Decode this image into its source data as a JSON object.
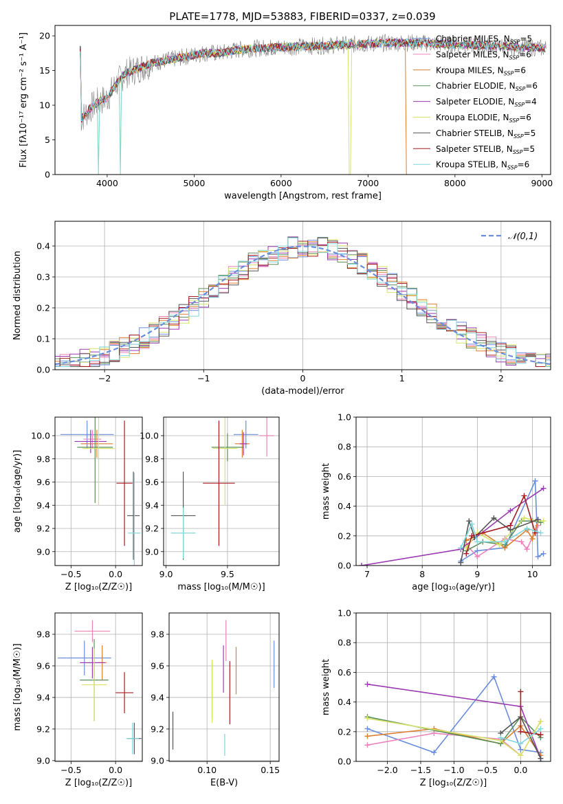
{
  "title": "PLATE=1778, MJD=53883, FIBERID=0337, z=0.039",
  "colors": [
    "#6a8ddb",
    "#ec82bb",
    "#dd7f2c",
    "#5a8f5a",
    "#9a3ab0",
    "#d7e36a",
    "#555555",
    "#a61c22",
    "#82d6dc"
  ],
  "legend_entries": [
    {
      "model": "Chabrier MILES",
      "nssp": "5"
    },
    {
      "model": "Salpeter MILES",
      "nssp": "6"
    },
    {
      "model": "Kroupa MILES",
      "nssp": "6"
    },
    {
      "model": "Chabrier ELODIE",
      "nssp": "6"
    },
    {
      "model": "Salpeter ELODIE",
      "nssp": "4"
    },
    {
      "model": "Kroupa ELODIE",
      "nssp": "6"
    },
    {
      "model": "Chabrier STELIB",
      "nssp": "5"
    },
    {
      "model": "Salpeter STELIB",
      "nssp": "5"
    },
    {
      "model": "Kroupa STELIB",
      "nssp": "6"
    }
  ],
  "chart_data": [
    {
      "id": "spectrum",
      "type": "line",
      "xlabel": "wavelength [Angstrom, rest frame]",
      "ylabel": "Flux [fλ10⁻¹⁷ erg cm⁻² s⁻¹ A⁻¹]",
      "xlim": [
        3400,
        9100
      ],
      "ylim": [
        0,
        21.5
      ],
      "xticks": [
        4000,
        5000,
        6000,
        7000,
        8000,
        9000
      ],
      "yticks": [
        0,
        5,
        10,
        15,
        20
      ],
      "grid": false,
      "legend": "upper right",
      "x": [
        3700,
        3800,
        3900,
        4000,
        4100,
        4200,
        4300,
        4400,
        4500,
        4700,
        4900,
        5100,
        5300,
        5500,
        5700,
        5900,
        6100,
        6300,
        6500,
        6700,
        6900,
        7100,
        7300,
        7500,
        7700,
        7900,
        8100,
        8300,
        8500,
        8700,
        8900,
        9050
      ],
      "model_flux": [
        8.0,
        9.5,
        10.5,
        11.0,
        13.0,
        14.5,
        15.0,
        15.5,
        16.0,
        16.5,
        17.0,
        17.5,
        17.5,
        18.0,
        18.2,
        18.3,
        18.4,
        18.5,
        18.6,
        18.7,
        18.8,
        18.9,
        19.0,
        19.0,
        18.9,
        18.8,
        18.7,
        18.6,
        18.5,
        18.4,
        18.3,
        18.2
      ],
      "notes": [
        "data spectrum shown in gray with noise",
        "Kroupa MILES spectrum drops to 0 near 7430 Å",
        "absorption dips to 0 near 3900, 4150 and 6790 Å"
      ]
    },
    {
      "id": "residuals",
      "type": "bar",
      "xlabel": "(data-model)/error",
      "ylabel": "Normed distribution",
      "xlim": [
        -2.5,
        2.5
      ],
      "ylim": [
        0,
        0.48
      ],
      "xticks": [
        -2,
        -1,
        0,
        1,
        2
      ],
      "yticks": [
        0.0,
        0.1,
        0.2,
        0.3,
        0.4
      ],
      "grid": true,
      "legend": "upper right",
      "reference": {
        "name": "𝒩(0,1)",
        "color": "#6a8ddb"
      }
    },
    {
      "id": "age-vs-Z",
      "type": "scatter",
      "xlabel": "Z [log₁₀(Z/Z☉)]",
      "ylabel": "age  [log₁₀(age/yr)]",
      "xlim": [
        -0.68,
        0.3
      ],
      "ylim": [
        8.88,
        10.16
      ],
      "xticks": [
        -0.5,
        0.0
      ],
      "yticks": [
        9.0,
        9.2,
        9.4,
        9.6,
        9.8,
        10.0
      ],
      "grid": true,
      "points": [
        {
          "x": -0.32,
          "y": 10.01,
          "xerr": 0.3,
          "yerr": 0.12,
          "color": 0
        },
        {
          "x": -0.26,
          "y": 9.97,
          "xerr": 0.1,
          "yerr": 0.08,
          "color": 1
        },
        {
          "x": -0.21,
          "y": 9.93,
          "xerr": 0.18,
          "yerr": 0.12,
          "color": 2
        },
        {
          "x": -0.23,
          "y": 9.9,
          "xerr": 0.2,
          "yerr": 0.48,
          "color": 3
        },
        {
          "x": -0.28,
          "y": 9.95,
          "xerr": 0.18,
          "yerr": 0.1,
          "color": 4
        },
        {
          "x": -0.19,
          "y": 9.89,
          "xerr": 0.18,
          "yerr": 0.49,
          "color": 5
        },
        {
          "x": 0.2,
          "y": 9.31,
          "xerr": 0.07,
          "yerr": 0.38,
          "color": 6
        },
        {
          "x": 0.1,
          "y": 9.59,
          "xerr": 0.09,
          "yerr": 0.54,
          "color": 7
        },
        {
          "x": 0.21,
          "y": 9.16,
          "xerr": 0.07,
          "yerr": 0.52,
          "color": 8
        }
      ]
    },
    {
      "id": "age-vs-mass",
      "type": "scatter",
      "xlabel": "mass [log₁₀(M/M☉)]",
      "ylabel": "",
      "xlim": [
        8.98,
        9.92
      ],
      "ylim": [
        8.88,
        10.16
      ],
      "xticks": [
        9.0,
        9.5
      ],
      "yticks": [
        9.0,
        9.2,
        9.4,
        9.6,
        9.8,
        10.0
      ],
      "grid": true,
      "points": [
        {
          "x": 9.65,
          "y": 10.01,
          "xerr": 0.1,
          "yerr": 0.12,
          "color": 0
        },
        {
          "x": 9.82,
          "y": 10.0,
          "xerr": 0.06,
          "yerr": 0.18,
          "color": 1
        },
        {
          "x": 9.62,
          "y": 9.93,
          "xerr": 0.06,
          "yerr": 0.12,
          "color": 2
        },
        {
          "x": 9.5,
          "y": 9.9,
          "xerr": 0.13,
          "yerr": 0.12,
          "color": 3
        },
        {
          "x": 9.63,
          "y": 9.93,
          "xerr": 0.03,
          "yerr": 0.1,
          "color": 4
        },
        {
          "x": 9.48,
          "y": 9.89,
          "xerr": 0.1,
          "yerr": 0.49,
          "color": 5
        },
        {
          "x": 9.14,
          "y": 9.31,
          "xerr": 0.1,
          "yerr": 0.38,
          "color": 6
        },
        {
          "x": 9.43,
          "y": 9.59,
          "xerr": 0.13,
          "yerr": 0.54,
          "color": 7
        },
        {
          "x": 9.14,
          "y": 9.16,
          "xerr": 0.1,
          "yerr": 0.22,
          "color": 8
        }
      ]
    },
    {
      "id": "mass-weight-vs-age",
      "type": "line",
      "xlabel": "age  [log₁₀(age/yr)]",
      "ylabel": "mass weight",
      "xlim": [
        6.8,
        10.33
      ],
      "ylim": [
        0,
        1.0
      ],
      "xticks": [
        7,
        8,
        9,
        10
      ],
      "yticks": [
        0.0,
        0.2,
        0.4,
        0.6,
        0.8,
        1.0
      ],
      "grid": true,
      "series": [
        {
          "color": 0,
          "x": [
            8.7,
            9.0,
            9.5,
            10.05,
            10.1,
            10.2
          ],
          "y": [
            0.03,
            0.1,
            0.12,
            0.57,
            0.06,
            0.08
          ]
        },
        {
          "color": 1,
          "x": [
            8.8,
            9.0,
            9.5,
            9.8,
            9.9,
            10.1
          ],
          "y": [
            0.14,
            0.06,
            0.18,
            0.16,
            0.11,
            0.27
          ]
        },
        {
          "color": 2,
          "x": [
            8.8,
            9.1,
            9.5,
            9.9,
            10.0,
            10.1
          ],
          "y": [
            0.17,
            0.22,
            0.12,
            0.24,
            0.18,
            0.3
          ]
        },
        {
          "color": 3,
          "x": [
            8.8,
            9.1,
            9.5,
            9.8,
            10.0,
            10.15
          ],
          "y": [
            0.1,
            0.16,
            0.14,
            0.3,
            0.3,
            0.29
          ]
        },
        {
          "color": 4,
          "x": [
            6.9,
            8.7,
            9.6,
            10.2
          ],
          "y": [
            0.0,
            0.11,
            0.37,
            0.52
          ]
        },
        {
          "color": 5,
          "x": [
            8.8,
            9.0,
            9.4,
            9.85,
            10.1,
            10.2
          ],
          "y": [
            0.12,
            0.22,
            0.14,
            0.32,
            0.3,
            0.3
          ]
        },
        {
          "color": 6,
          "x": [
            8.7,
            8.85,
            8.95,
            9.3,
            9.6,
            10.1
          ],
          "y": [
            0.02,
            0.3,
            0.19,
            0.32,
            0.24,
            0.31
          ]
        },
        {
          "color": 7,
          "x": [
            8.8,
            8.9,
            9.6,
            9.85,
            10.05
          ],
          "y": [
            0.08,
            0.2,
            0.27,
            0.47,
            0.22
          ]
        },
        {
          "color": 8,
          "x": [
            8.7,
            8.9,
            9.0,
            9.5,
            9.9,
            10.15
          ],
          "y": [
            0.12,
            0.28,
            0.16,
            0.16,
            0.25,
            0.22
          ]
        }
      ]
    },
    {
      "id": "mass-vs-Z",
      "type": "scatter",
      "xlabel": "Z [log₁₀(Z/Z☉)]",
      "ylabel": "mass [log₁₀(M/M☉)]",
      "xlim": [
        -0.68,
        0.3
      ],
      "ylim": [
        8.995,
        9.935
      ],
      "xticks": [
        -0.5,
        0.0
      ],
      "yticks": [
        9.0,
        9.2,
        9.4,
        9.6,
        9.8
      ],
      "grid": true,
      "points": [
        {
          "x": -0.35,
          "y": 9.65,
          "xerr": 0.3,
          "yerr": 0.11,
          "color": 0
        },
        {
          "x": -0.26,
          "y": 9.82,
          "xerr": 0.2,
          "yerr": 0.07,
          "color": 1
        },
        {
          "x": -0.15,
          "y": 9.62,
          "xerr": 0.05,
          "yerr": 0.11,
          "color": 2
        },
        {
          "x": -0.24,
          "y": 9.51,
          "xerr": 0.16,
          "yerr": 0.26,
          "color": 3
        },
        {
          "x": -0.26,
          "y": 9.62,
          "xerr": 0.14,
          "yerr": 0.1,
          "color": 4
        },
        {
          "x": -0.24,
          "y": 9.48,
          "xerr": 0.14,
          "yerr": 0.23,
          "color": 5
        },
        {
          "x": 0.21,
          "y": 9.14,
          "xerr": 0.08,
          "yerr": 0.1,
          "color": 6
        },
        {
          "x": 0.1,
          "y": 9.43,
          "xerr": 0.1,
          "yerr": 0.13,
          "color": 7
        },
        {
          "x": 0.19,
          "y": 9.14,
          "xerr": 0.07,
          "yerr": 0.1,
          "color": 8
        }
      ]
    },
    {
      "id": "mass-vs-EBV",
      "type": "scatter",
      "xlabel": "E(B-V)",
      "ylabel": "",
      "xlim": [
        0.07,
        0.157
      ],
      "ylim": [
        8.995,
        9.935
      ],
      "xticks": [
        0.1,
        0.15
      ],
      "yticks": [
        9.0,
        9.2,
        9.4,
        9.6,
        9.8
      ],
      "grid": true,
      "points": [
        {
          "x": 0.153,
          "y": 9.61,
          "yerr": 0.15,
          "color": 0
        },
        {
          "x": 0.115,
          "y": 9.76,
          "yerr": 0.13,
          "color": 1
        },
        {
          "x": 0.123,
          "y": 9.57,
          "yerr": 0.15,
          "color": 2
        },
        {
          "x": 0.104,
          "y": 9.44,
          "yerr": 0.18,
          "color": 3
        },
        {
          "x": 0.113,
          "y": 9.58,
          "yerr": 0.15,
          "color": 4
        },
        {
          "x": 0.104,
          "y": 9.44,
          "yerr": 0.2,
          "color": 5
        },
        {
          "x": 0.073,
          "y": 9.19,
          "yerr": 0.12,
          "color": 6
        },
        {
          "x": 0.118,
          "y": 9.43,
          "yerr": 0.2,
          "color": 7
        },
        {
          "x": 0.114,
          "y": 9.1,
          "yerr": 0.07,
          "color": 8
        }
      ]
    },
    {
      "id": "mass-weight-vs-Z",
      "type": "line",
      "xlabel": "Z [log₁₀(Z/Z☉)]",
      "ylabel": "mass weight",
      "xlim": [
        -2.47,
        0.45
      ],
      "ylim": [
        0,
        1.0
      ],
      "xticks": [
        -2.0,
        -1.5,
        -1.0,
        -0.5,
        0.0
      ],
      "yticks": [
        0.0,
        0.2,
        0.4,
        0.6,
        0.8,
        1.0
      ],
      "grid": true,
      "series": [
        {
          "color": 0,
          "x": [
            -2.3,
            -1.3,
            -0.4,
            0.0,
            0.3,
            0.3
          ],
          "y": [
            0.22,
            0.06,
            0.57,
            0.08,
            0.06,
            0.0
          ]
        },
        {
          "color": 1,
          "x": [
            -2.3,
            -1.3,
            -0.3,
            0.0,
            0.3
          ],
          "y": [
            0.11,
            0.19,
            0.15,
            0.04,
            0.27
          ]
        },
        {
          "color": 2,
          "x": [
            -2.3,
            -1.3,
            -0.3,
            0.0,
            0.3
          ],
          "y": [
            0.17,
            0.22,
            0.12,
            0.24,
            0.04
          ]
        },
        {
          "color": 3,
          "x": [
            -2.3,
            -0.3,
            0.0,
            0.3
          ],
          "y": [
            0.3,
            0.12,
            0.3,
            0.16
          ]
        },
        {
          "color": 4,
          "x": [
            -2.3,
            0.0,
            0.3
          ],
          "y": [
            0.52,
            0.37,
            0.02
          ]
        },
        {
          "color": 5,
          "x": [
            -2.3,
            -0.3,
            0.0,
            0.3
          ],
          "y": [
            0.29,
            0.14,
            0.04,
            0.27
          ]
        },
        {
          "color": 6,
          "x": [
            -0.3,
            0.0,
            0.3
          ],
          "y": [
            0.19,
            0.3,
            0.02
          ]
        },
        {
          "color": 7,
          "x": [
            0.0,
            0.0,
            0.3
          ],
          "y": [
            0.47,
            0.2,
            0.18
          ]
        },
        {
          "color": 8,
          "x": [
            -0.3,
            0.0,
            0.3
          ],
          "y": [
            0.16,
            0.12,
            0.22
          ]
        }
      ]
    }
  ]
}
